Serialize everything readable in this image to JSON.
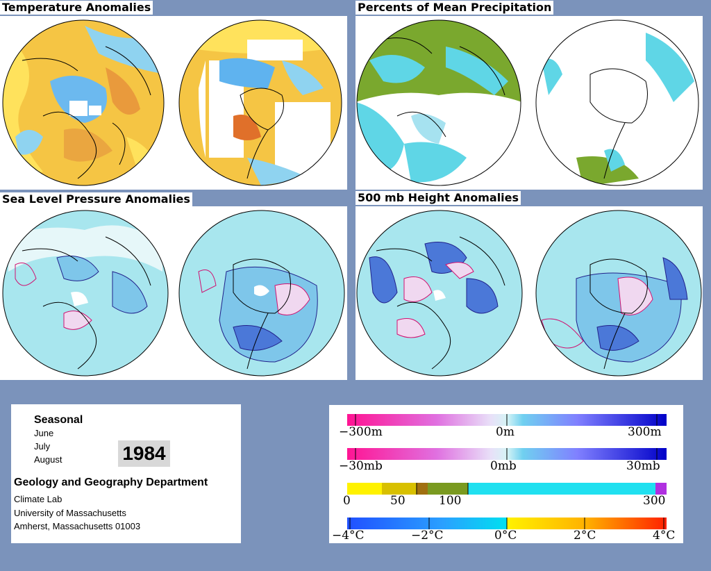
{
  "panels": {
    "temperature": {
      "title": "Temperature Anomalies"
    },
    "precipitation": {
      "title": "Percents of Mean Precipitation"
    },
    "pressure": {
      "title": "Sea Level Pressure Anomalies"
    },
    "height": {
      "title": "500 mb Height Anomalies"
    }
  },
  "info": {
    "period": "Seasonal",
    "months": [
      "June",
      "July",
      "August"
    ],
    "year": "1984",
    "department": "Geology and Geography Department",
    "address": [
      "Climate Lab",
      "University of Massachusetts",
      "Amherst, Massachusetts 01003"
    ]
  },
  "legends": {
    "height": {
      "labels": [
        "−300m",
        "0m",
        "300m"
      ]
    },
    "pressure": {
      "labels": [
        "−30mb",
        "0mb",
        "30mb"
      ]
    },
    "precip": {
      "labels": [
        "0",
        "50",
        "100",
        "300"
      ]
    },
    "temp": {
      "labels": [
        "−4°C",
        "−2°C",
        "0°C",
        "2°C",
        "4°C"
      ]
    }
  },
  "colors": {
    "background": "#7b93bb",
    "anomaly_negative": "#ff1493",
    "anomaly_positive": "#0000c8",
    "ocean_neutral": "#a8e6ee",
    "temp_warm": "#f7c23a",
    "temp_cold": "#3aa0ff",
    "precip_dry": "#6b9a24"
  }
}
